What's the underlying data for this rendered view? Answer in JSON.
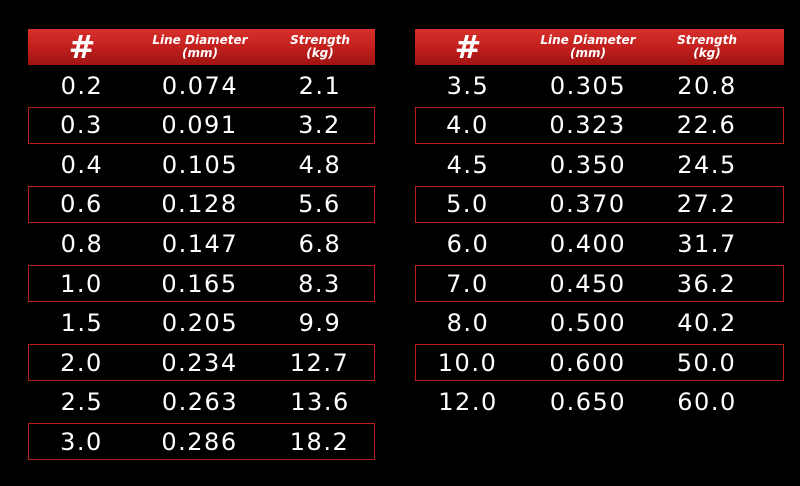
{
  "tables": [
    {
      "header": [
        [
          "#"
        ],
        [
          "Line Diameter",
          "(mm)"
        ],
        [
          "Strength",
          "(kg)"
        ]
      ],
      "rows": [
        [
          "0.2",
          "0.074",
          "2.1"
        ],
        [
          "0.3",
          "0.091",
          "3.2"
        ],
        [
          "0.4",
          "0.105",
          "4.8"
        ],
        [
          "0.6",
          "0.128",
          "5.6"
        ],
        [
          "0.8",
          "0.147",
          "6.8"
        ],
        [
          "1.0",
          "0.165",
          "8.3"
        ],
        [
          "1.5",
          "0.205",
          "9.9"
        ],
        [
          "2.0",
          "0.234",
          "12.7"
        ],
        [
          "2.5",
          "0.263",
          "13.6"
        ],
        [
          "3.0",
          "0.286",
          "18.2"
        ]
      ]
    },
    {
      "header": [
        [
          "#"
        ],
        [
          "Line Diameter",
          "(mm)"
        ],
        [
          "Strength",
          "(kg)"
        ]
      ],
      "rows": [
        [
          "3.5",
          "0.305",
          "20.8"
        ],
        [
          "4.0",
          "0.323",
          "22.6"
        ],
        [
          "4.5",
          "0.350",
          "24.5"
        ],
        [
          "5.0",
          "0.370",
          "27.2"
        ],
        [
          "6.0",
          "0.400",
          "31.7"
        ],
        [
          "7.0",
          "0.450",
          "36.2"
        ],
        [
          "8.0",
          "0.500",
          "40.2"
        ],
        [
          "10.0",
          "0.600",
          "50.0"
        ],
        [
          "12.0",
          "0.650",
          "60.0"
        ]
      ]
    }
  ]
}
